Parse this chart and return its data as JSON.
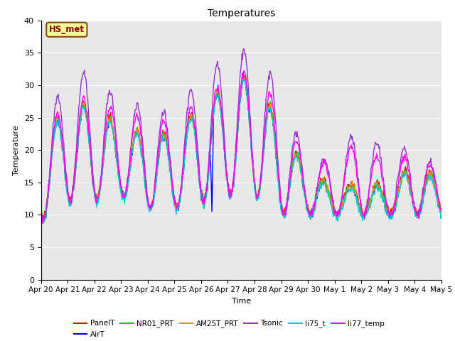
{
  "title": "Temperatures",
  "xlabel": "Time",
  "ylabel": "Temperature",
  "ylim": [
    0,
    40
  ],
  "yticks": [
    0,
    5,
    10,
    15,
    20,
    25,
    30,
    35,
    40
  ],
  "annotation_text": "HS_met",
  "annotation_color": "#8B0000",
  "annotation_bg": "#FFFF99",
  "annotation_border": "#8B4513",
  "series": [
    {
      "label": "PanelT",
      "color": "#FF0000",
      "lw": 1.0
    },
    {
      "label": "AirT",
      "color": "#0000FF",
      "lw": 1.0
    },
    {
      "label": "NR01_PRT",
      "color": "#00CC00",
      "lw": 1.0
    },
    {
      "label": "AM25T_PRT",
      "color": "#FF8C00",
      "lw": 1.0
    },
    {
      "label": "Tsonic",
      "color": "#9933CC",
      "lw": 1.0
    },
    {
      "label": "li75_t",
      "color": "#00CCCC",
      "lw": 1.0
    },
    {
      "label": "li77_temp",
      "color": "#FF00FF",
      "lw": 1.0
    }
  ],
  "bg_color": "#E8E8E8",
  "n_points": 720,
  "x_tick_labels": [
    "Apr 20",
    "Apr 21",
    "Apr 22",
    "Apr 23",
    "Apr 24",
    "Apr 25",
    "Apr 26",
    "Apr 27",
    "Apr 28",
    "Apr 29",
    "Apr 30",
    "May 1",
    "May 2",
    "May 3",
    "May 4",
    "May 5"
  ],
  "legend_order": [
    "PanelT",
    "AirT",
    "NR01_PRT",
    "AM25T_PRT",
    "Tsonic",
    "li75_t",
    "li77_temp"
  ]
}
